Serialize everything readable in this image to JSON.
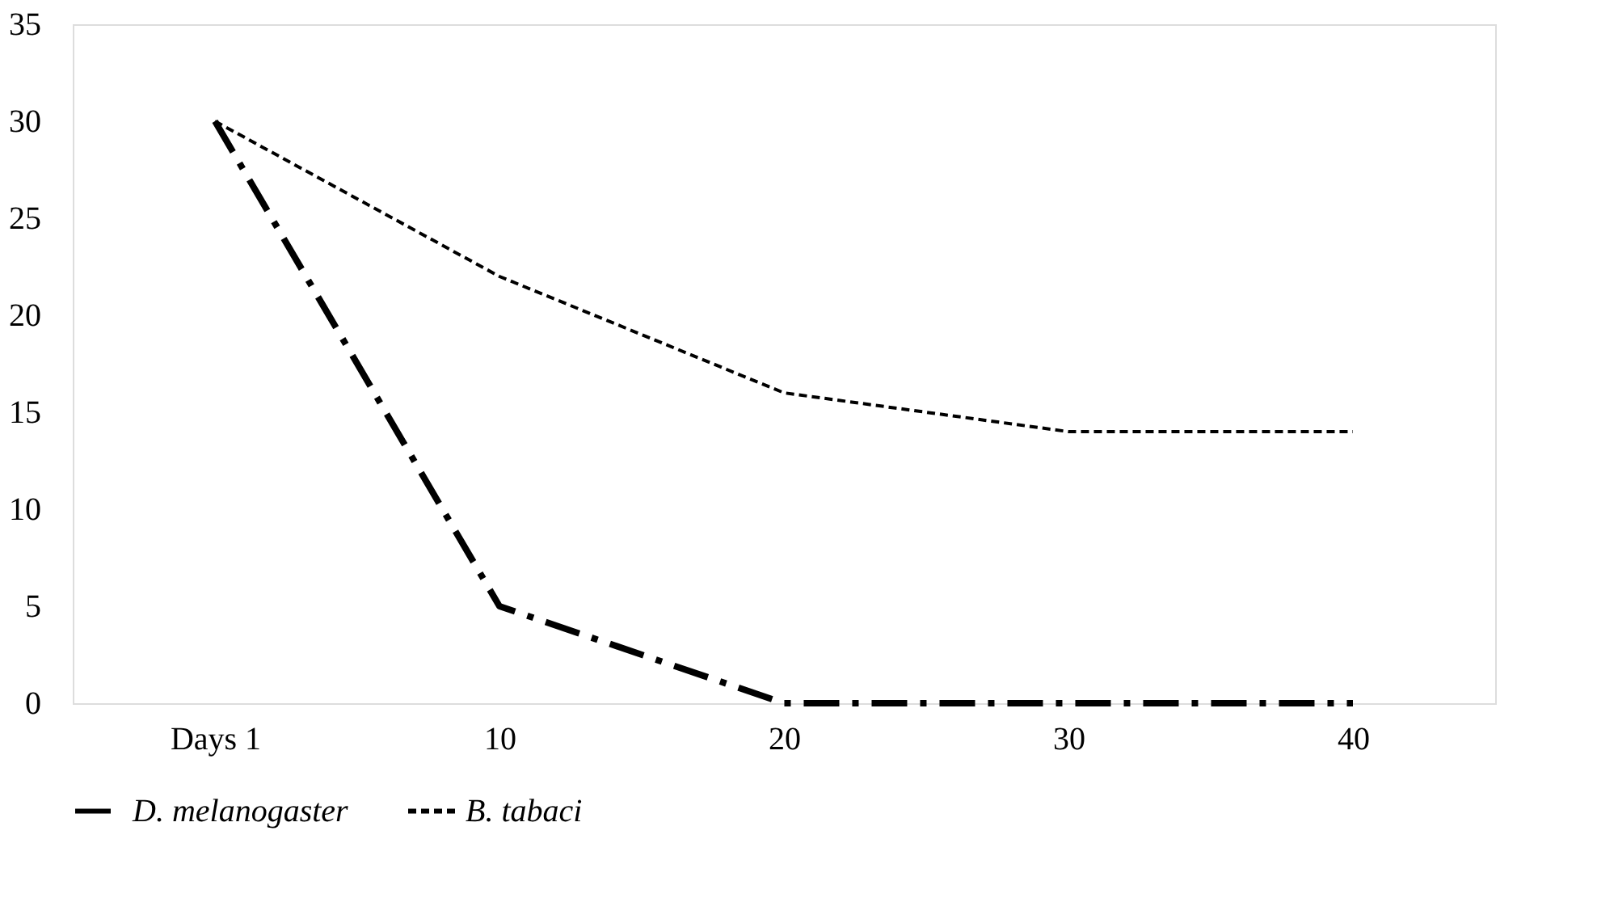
{
  "chart_data": {
    "type": "line",
    "categories": [
      "Days  1",
      "10",
      "20",
      "30",
      "40"
    ],
    "series": [
      {
        "name": "D. melanogaster",
        "color": "#000000",
        "values": [
          30,
          5,
          0,
          0,
          0
        ],
        "line_style": "dashdot"
      },
      {
        "name": "B. tabaci",
        "color": "#000000",
        "values": [
          30,
          22,
          16,
          14,
          14
        ],
        "line_style": "dashed"
      }
    ],
    "ylim": [
      0,
      35
    ],
    "yticks": [
      0,
      5,
      10,
      15,
      20,
      25,
      30,
      35
    ],
    "grid": false,
    "legend": "bottom"
  }
}
